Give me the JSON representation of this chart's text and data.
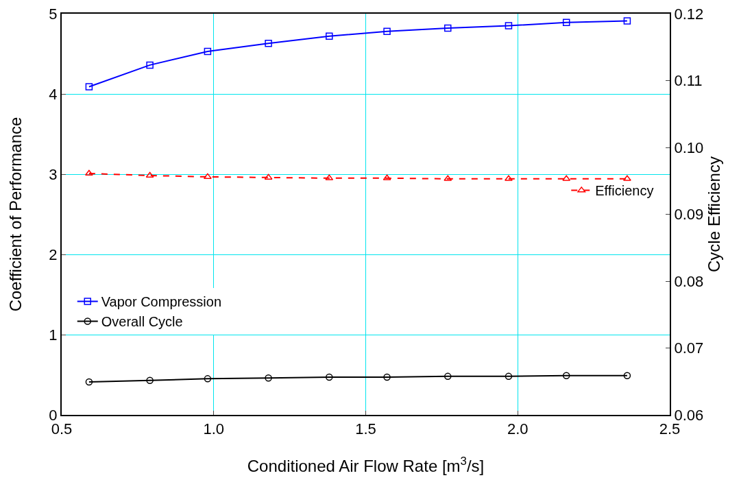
{
  "chart_data": {
    "type": "line",
    "xlabel": "Conditioned Air Flow Rate [m$^{3}$/s]",
    "ylabel": "Coefficient of Performance",
    "y2label": "Cycle Efficiency",
    "x": [
      0.59,
      0.79,
      0.98,
      1.18,
      1.38,
      1.57,
      1.77,
      1.97,
      2.16,
      2.36
    ],
    "series": [
      {
        "name": "Vapor Compression",
        "color": "#0000ff",
        "marker": "square",
        "line_style": "solid",
        "values": [
          4.09,
          4.36,
          4.53,
          4.63,
          4.72,
          4.78,
          4.82,
          4.85,
          4.89,
          4.91
        ]
      },
      {
        "name": "Overall Cycle",
        "color": "#000000",
        "marker": "circle",
        "line_style": "solid",
        "values": [
          0.41,
          0.43,
          0.45,
          0.46,
          0.47,
          0.47,
          0.48,
          0.48,
          0.49,
          0.49
        ]
      },
      {
        "name": "Efficiency",
        "color": "#ff0000",
        "marker": "triangle",
        "line_style": "dashed",
        "axis": "y2",
        "values": [
          0.0961,
          0.0958,
          0.0956,
          0.0955,
          0.0954,
          0.0954,
          0.0953,
          0.0953,
          0.0953,
          0.0953
        ]
      }
    ],
    "xlim": [
      0.5,
      2.5
    ],
    "xticks": [
      0.5,
      {
        "value": 1,
        "label": "1.0"
      },
      1.5,
      {
        "value": 2,
        "label": "2.0"
      },
      2.5
    ],
    "ylim": [
      0,
      5
    ],
    "yticks": [
      0,
      1,
      2,
      3,
      4,
      5
    ],
    "y2lim": [
      0.06,
      0.12
    ],
    "y2ticks": [
      0.06,
      0.07,
      0.08,
      0.09,
      {
        "value": 0.1,
        "label": "0.10"
      },
      0.11,
      0.12
    ],
    "grid": true,
    "legend": "bottom left"
  }
}
